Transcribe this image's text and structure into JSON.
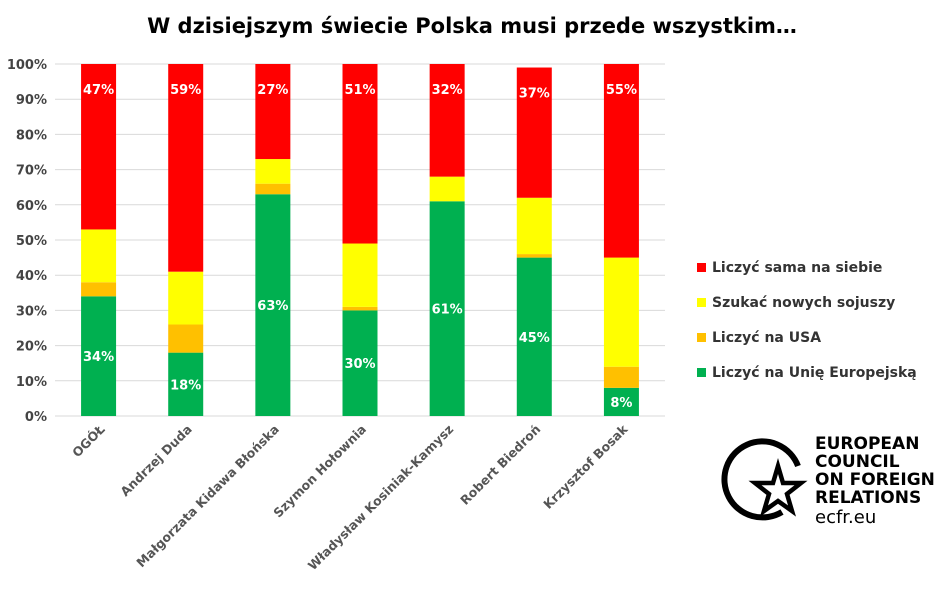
{
  "chart_data": {
    "type": "bar",
    "stacked": true,
    "title": "W dzisiejszym świecie Polska musi przede wszystkim…",
    "categories": [
      "OGÓŁ",
      "Andrzej Duda",
      "Małgorzata Kidawa Błońska",
      "Szymon Hołownia",
      "Władysław Kosiniak-Kamysz",
      "Robert Biedroń",
      "Krzysztof Bosak"
    ],
    "series": [
      {
        "name": "Liczyć na Unię Europejską",
        "color": "#00b050",
        "values": [
          34,
          18,
          63,
          30,
          61,
          45,
          8
        ],
        "labels": [
          "34%",
          "18%",
          "63%",
          "30%",
          "61%",
          "45%",
          "8%"
        ]
      },
      {
        "name": "Liczyć na USA",
        "color": "#ffc000",
        "values": [
          4,
          8,
          3,
          1,
          0,
          1,
          6
        ]
      },
      {
        "name": "Szukać nowych sojuszy",
        "color": "#ffff00",
        "values": [
          15,
          15,
          7,
          18,
          7,
          16,
          31
        ]
      },
      {
        "name": "Liczyć sama na siebie",
        "color": "#ff0000",
        "values": [
          47,
          59,
          27,
          51,
          32,
          37,
          55
        ],
        "labels": [
          "47%",
          "59%",
          "27%",
          "51%",
          "32%",
          "37%",
          "55%"
        ]
      }
    ],
    "legend_order": [
      "Liczyć sama na siebie",
      "Szukać nowych sojuszy",
      "Liczyć na USA",
      "Liczyć na Unię Europejską"
    ],
    "legend_position": "right",
    "ylim": [
      0,
      100
    ],
    "yticks": [
      "0%",
      "10%",
      "20%",
      "30%",
      "40%",
      "50%",
      "60%",
      "70%",
      "80%",
      "90%",
      "100%"
    ],
    "grid": true
  },
  "logo": {
    "lines": [
      "EUROPEAN",
      "COUNCIL",
      "ON FOREIGN",
      "RELATIONS"
    ],
    "url": "ecfr.eu",
    "icon": "star-circle-icon"
  }
}
